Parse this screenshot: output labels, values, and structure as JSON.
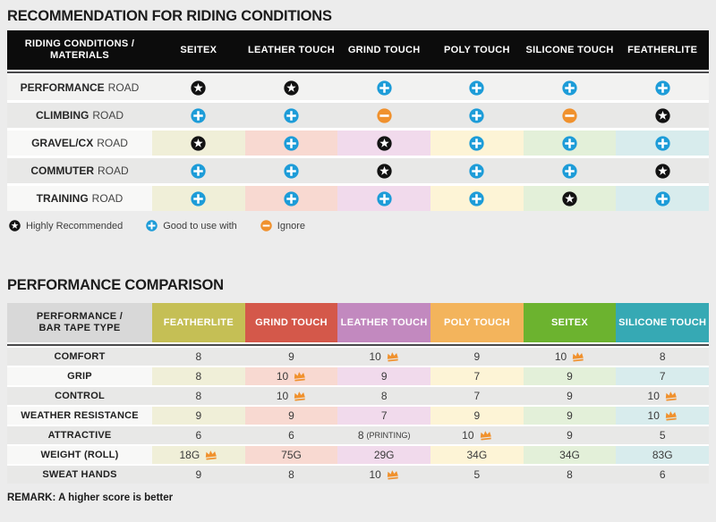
{
  "chart_data": [
    {
      "type": "table",
      "title": "RECOMMENDATION FOR RIDING CONDITIONS",
      "header_label_line1": "RIDING CONDITIONS /",
      "header_label_line2": "MATERIALS",
      "columns": [
        "SEITEX",
        "LEATHER TOUCH",
        "GRIND TOUCH",
        "POLY TOUCH",
        "SILICONE TOUCH",
        "FEATHERLITE"
      ],
      "rows": [
        {
          "condition": "PERFORMANCE",
          "condition_suffix": "ROAD",
          "ratings": [
            "highly-recommended",
            "highly-recommended",
            "good-to-use",
            "good-to-use",
            "good-to-use",
            "good-to-use"
          ],
          "tinted": false,
          "shade": "light"
        },
        {
          "condition": "CLIMBING",
          "condition_suffix": "ROAD",
          "ratings": [
            "good-to-use",
            "good-to-use",
            "ignore",
            "good-to-use",
            "ignore",
            "highly-recommended"
          ],
          "tinted": false,
          "shade": "dark"
        },
        {
          "condition": "GRAVEL/CX",
          "condition_suffix": "ROAD",
          "ratings": [
            "highly-recommended",
            "good-to-use",
            "highly-recommended",
            "good-to-use",
            "good-to-use",
            "good-to-use"
          ],
          "tinted": true
        },
        {
          "condition": "COMMUTER",
          "condition_suffix": "ROAD",
          "ratings": [
            "good-to-use",
            "good-to-use",
            "highly-recommended",
            "good-to-use",
            "good-to-use",
            "highly-recommended"
          ],
          "tinted": false,
          "shade": "dark"
        },
        {
          "condition": "TRAINING",
          "condition_suffix": "ROAD",
          "ratings": [
            "good-to-use",
            "good-to-use",
            "good-to-use",
            "good-to-use",
            "highly-recommended",
            "good-to-use"
          ],
          "tinted": true
        }
      ],
      "legend": [
        {
          "icon": "highly-recommended",
          "label": "Highly Recommended"
        },
        {
          "icon": "good-to-use",
          "label": "Good to use with"
        },
        {
          "icon": "ignore",
          "label": "Ignore"
        }
      ]
    },
    {
      "type": "table",
      "title": "PERFORMANCE COMPARISON",
      "header_label_line1": "PERFORMANCE /",
      "header_label_line2": "BAR TAPE TYPE",
      "columns": [
        "FEATHERLITE",
        "GRIND TOUCH",
        "LEATHER TOUCH",
        "POLY TOUCH",
        "SEITEX",
        "SILICONE TOUCH"
      ],
      "rows": [
        {
          "label": "COMFORT",
          "values": [
            "8",
            "9",
            "10",
            "9",
            "10",
            "8"
          ],
          "crowns": [
            2,
            4
          ],
          "tinted": false
        },
        {
          "label": "GRIP",
          "values": [
            "8",
            "10",
            "9",
            "7",
            "9",
            "7"
          ],
          "crowns": [
            1
          ],
          "tinted": true
        },
        {
          "label": "CONTROL",
          "values": [
            "8",
            "10",
            "8",
            "7",
            "9",
            "10"
          ],
          "crowns": [
            1,
            5
          ],
          "tinted": false
        },
        {
          "label": "WEATHER RESISTANCE",
          "values": [
            "9",
            "9",
            "7",
            "9",
            "9",
            "10"
          ],
          "crowns": [
            5
          ],
          "tinted": true
        },
        {
          "label": "ATTRACTIVE",
          "values": [
            "6",
            "6",
            "8",
            "10",
            "9",
            "5"
          ],
          "suffixes": {
            "2": "(PRINTING)"
          },
          "crowns": [
            3
          ],
          "tinted": false
        },
        {
          "label": "WEIGHT (ROLL)",
          "values": [
            "18G",
            "75G",
            "29G",
            "34G",
            "34G",
            "83G"
          ],
          "crowns": [
            0
          ],
          "tinted": true
        },
        {
          "label": "SWEAT HANDS",
          "values": [
            "9",
            "8",
            "10",
            "5",
            "8",
            "6"
          ],
          "crowns": [
            2
          ],
          "tinted": false
        }
      ],
      "remark": "REMARK: A higher score is better"
    }
  ],
  "style": {
    "accent_blue": "#1d9cd8",
    "accent_orange": "#f0912d",
    "icon_black": "#121212",
    "row_light": "#f2f2f1",
    "row_dark": "#e8e8e7",
    "row_label_on_tint": "#f8f8f7",
    "tints": [
      "#f0efd8",
      "#f8d9d1",
      "#f1daec",
      "#fdf4d6",
      "#e3f0d9",
      "#d8eced"
    ],
    "material_header_colors": [
      "#c5bf55",
      "#d4584a",
      "#c289bf",
      "#f3b45c",
      "#6cb32f",
      "#36a9b4"
    ]
  }
}
